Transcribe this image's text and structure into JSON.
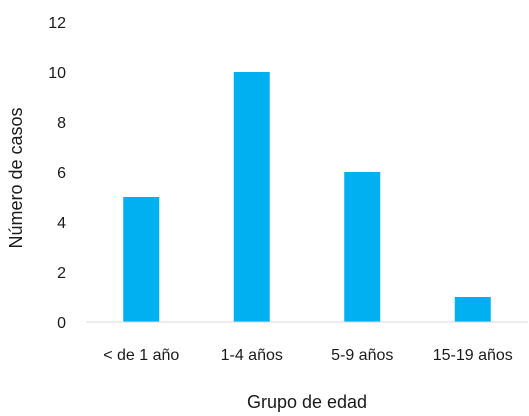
{
  "chart_data": {
    "type": "bar",
    "categories": [
      "< de 1 año",
      "1-4 años",
      "5-9 años",
      "15-19 años"
    ],
    "values": [
      5,
      10,
      6,
      1
    ],
    "xlabel": "Grupo de edad",
    "ylabel": "Número de casos",
    "ylim": [
      0,
      12
    ],
    "yticks": [
      "0",
      "2",
      "4",
      "6",
      "8",
      "10",
      "12"
    ],
    "grid": false,
    "bar_color": "#00B0F0",
    "axis_color": "#d9d9d9"
  }
}
